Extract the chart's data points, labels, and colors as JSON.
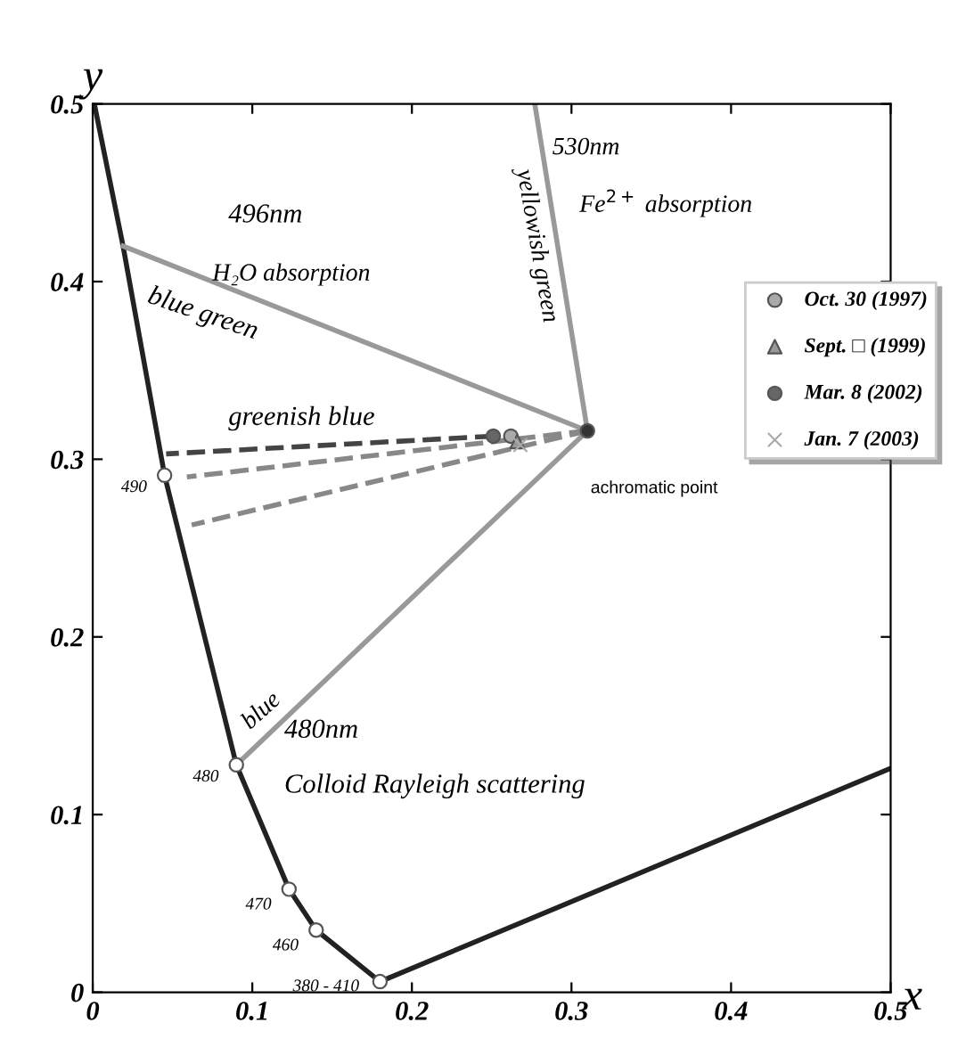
{
  "chart_data": {
    "type": "line",
    "xlabel": "x",
    "ylabel": "y",
    "xlim": [
      0,
      0.5
    ],
    "ylim": [
      0,
      0.5
    ],
    "xticks": [
      0,
      0.1,
      0.2,
      0.3,
      0.4,
      0.5
    ],
    "yticks": [
      0,
      0.1,
      0.2,
      0.3,
      0.4,
      0.5
    ],
    "grid": false,
    "legend": "right",
    "series": [
      {
        "color": "#222222",
        "line_style": "solid",
        "x": [
          0.001,
          0.019,
          0.045,
          0.09,
          0.123,
          0.14,
          0.18,
          0.5
        ],
        "values": [
          0.5,
          0.42,
          0.291,
          0.128,
          0.058,
          0.035,
          0.006,
          0.126
        ]
      },
      {
        "type": "line",
        "color": "#999999",
        "line_style": "solid",
        "x": [
          0.31,
          0.019
        ],
        "values": [
          0.316,
          0.42
        ]
      },
      {
        "type": "line",
        "color": "#999999",
        "line_style": "solid",
        "x": [
          0.31,
          0.277
        ],
        "values": [
          0.316,
          0.5
        ]
      },
      {
        "type": "line",
        "color": "#999999",
        "line_style": "solid",
        "x": [
          0.31,
          0.09
        ],
        "values": [
          0.316,
          0.128
        ]
      },
      {
        "type": "line",
        "color": "#444444",
        "line_style": "dashed",
        "x": [
          0.251,
          0.046
        ],
        "values": [
          0.313,
          0.303
        ]
      },
      {
        "type": "line",
        "color": "#888888",
        "line_style": "dashed",
        "x": [
          0.31,
          0.059
        ],
        "values": [
          0.316,
          0.29
        ]
      },
      {
        "type": "line",
        "color": "#888888",
        "line_style": "dashed",
        "x": [
          0.31,
          0.062
        ],
        "values": [
          0.316,
          0.263
        ]
      },
      {
        "type": "scatter",
        "color": "#ffffff",
        "marker": "circle",
        "x": [
          0.045,
          0.09,
          0.123,
          0.14,
          0.18
        ],
        "values": [
          0.291,
          0.128,
          0.058,
          0.035,
          0.006
        ]
      },
      {
        "type": "scatter",
        "color": "#333333",
        "marker": "circle",
        "x": [
          0.31
        ],
        "values": [
          0.316
        ]
      },
      {
        "type": "scatter",
        "name": "Oct. 30 (1997)",
        "color": "#aaaaaa",
        "marker": "circle",
        "x": [
          0.262
        ],
        "values": [
          0.313
        ]
      },
      {
        "type": "scatter",
        "name": "Sept. □ (1999)",
        "color": "#999999",
        "marker": "triangle",
        "x": [
          0.266
        ],
        "values": [
          0.31
        ]
      },
      {
        "type": "scatter",
        "name": "Mar. 8 (2002)",
        "color": "#666666",
        "marker": "circle",
        "x": [
          0.251
        ],
        "values": [
          0.313
        ]
      },
      {
        "type": "scatter",
        "name": "Jan. 7 (2003)",
        "color": "#aaaaaa",
        "marker": "cross",
        "x": [
          0.268
        ],
        "values": [
          0.308
        ]
      }
    ],
    "annotations": [
      "496nm",
      "H₂O absorption",
      "blue green",
      "530nm",
      "Fe$^{2+}$ absorption",
      "yellowish green",
      "greenish blue",
      "blue",
      "480nm",
      "Colloid Rayleigh scattering",
      {
        "text": "achromatic point",
        "x": 0.31,
        "y": 0.316
      },
      {
        "text": "490",
        "x": 0.04,
        "y": 0.288
      },
      {
        "text": "480",
        "x": 0.085,
        "y": 0.125
      },
      {
        "text": "470",
        "x": 0.118,
        "y": 0.053
      },
      {
        "text": "460",
        "x": 0.135,
        "y": 0.03
      },
      {
        "text": "380 - 410",
        "x": 0.173,
        "y": 0.007
      }
    ]
  }
}
